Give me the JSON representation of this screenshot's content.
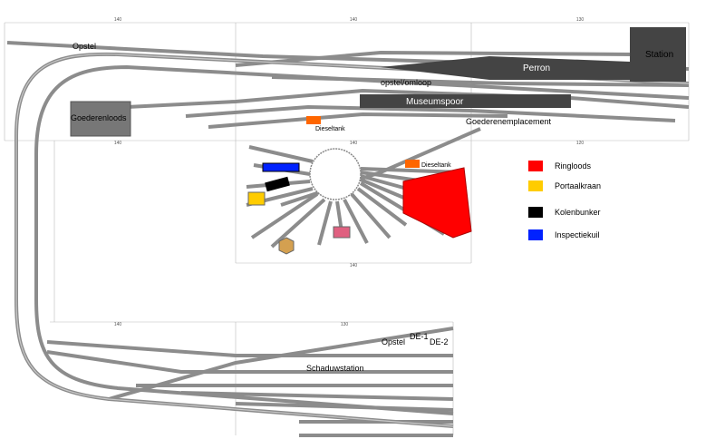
{
  "labels": {
    "opstel_top": "Opstel",
    "station": "Station",
    "perron": "Perron",
    "omloop": "opstel/omloop",
    "museumspoor": "Museumspoor",
    "goederenloods": "Goederenloods",
    "goederenemplacement": "Goederenemplacement",
    "dieseltank_1": "Dieseltank",
    "dieseltank_2": "Dieseltank",
    "schaduwstation": "Schaduwstation",
    "opstel_bottom": "Opstel",
    "de1": "DE-1",
    "de2": "DE-2"
  },
  "legend": {
    "items": [
      {
        "label": "Ringloods",
        "color": "#ff0000"
      },
      {
        "label": "Portaalkraan",
        "color": "#ffcc00"
      },
      {
        "label": "Kolenbunker",
        "color": "#000000"
      },
      {
        "label": "Inspectiekuil",
        "color": "#0022ff"
      }
    ]
  },
  "dimensions": {
    "top": [
      "140",
      "140",
      "130"
    ],
    "middle": [
      "140",
      "140",
      "120"
    ],
    "turntable": [
      "140"
    ],
    "bottom": [
      "140",
      "130"
    ]
  }
}
